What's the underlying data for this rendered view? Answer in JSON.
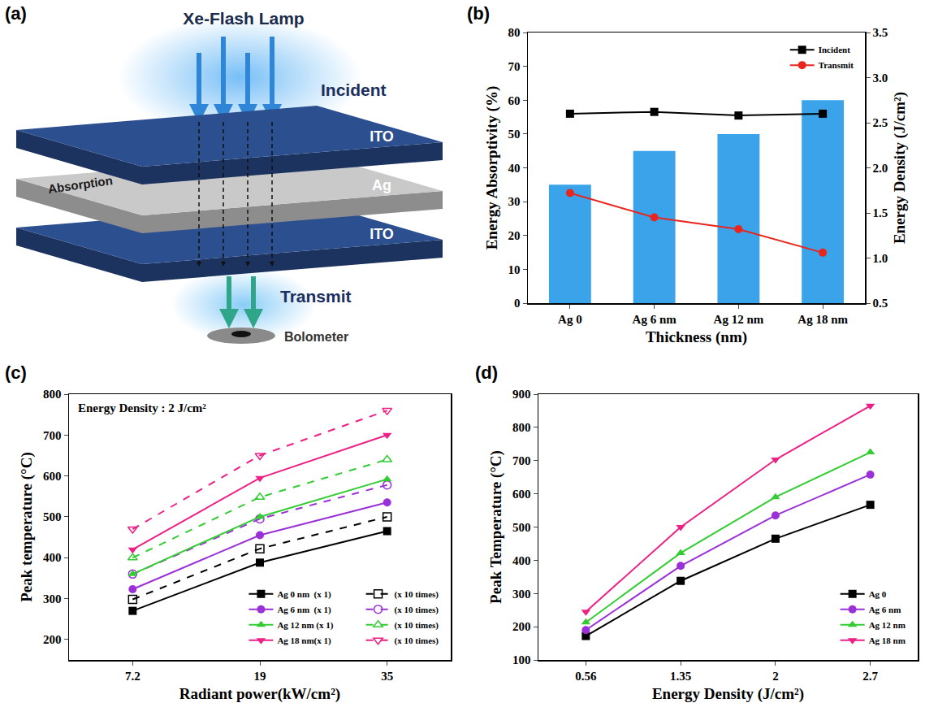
{
  "diagram": {
    "label": "(a)",
    "source": "Xe-Flash Lamp",
    "incident": "Incident",
    "layers": [
      "ITO",
      "Ag",
      "ITO"
    ],
    "absorption": "Absorption",
    "transmit": "Transmit",
    "detector": "Bolometer"
  },
  "chart_data": [
    {
      "label": "(b)",
      "type": "bar",
      "categories": [
        "Ag 0",
        "Ag 6 nm",
        "Ag 12 nm",
        "Ag 18 nm"
      ],
      "xlabel": "Thickness (nm)",
      "ylabel": "Energy Absorptivity (%)",
      "y2label": "Energy Density (J/cm²)",
      "ylim": [
        0,
        80
      ],
      "yticks": [
        0,
        10,
        20,
        30,
        40,
        50,
        60,
        70,
        80
      ],
      "y2lim": [
        0.5,
        3.5
      ],
      "y2ticks": [
        0.5,
        {
          "value": 1,
          "label": "1.0"
        },
        1.5,
        {
          "value": 2,
          "label": "2.0"
        },
        2.5,
        {
          "value": 3,
          "label": "3.0"
        },
        3.5
      ],
      "grid": false,
      "legend": "upper right",
      "series": [
        {
          "type": "bar",
          "color": "#3aa3ea",
          "values": [
            35,
            45,
            50,
            60
          ]
        },
        {
          "name": "Incident",
          "type": "line",
          "axis": "y2",
          "color": "#000000",
          "marker": "square",
          "line_style": "solid",
          "values": [
            2.6,
            2.62,
            2.58,
            2.6
          ]
        },
        {
          "name": "Transmit",
          "type": "line",
          "axis": "y2",
          "color": "#e8261e",
          "marker": "circle",
          "line_style": "solid",
          "values": [
            1.72,
            1.45,
            1.32,
            1.06
          ]
        }
      ]
    },
    {
      "label": "(c)",
      "type": "line",
      "annotation": "Energy Density : 2 J/cm²",
      "categories": [
        "7.2",
        "19",
        "35"
      ],
      "xlabel": "Radiant power(kW/cm²)",
      "ylabel": "Peak temperature (°C)",
      "ylim": [
        150,
        800
      ],
      "yticks": [
        200,
        300,
        400,
        500,
        600,
        700,
        800
      ],
      "grid": false,
      "legend": "lower right",
      "series": [
        {
          "name": "Ag 0 nm  (x 1)",
          "color": "#000000",
          "marker": "square",
          "line_style": "solid",
          "values": [
            270,
            388,
            465
          ]
        },
        {
          "name": "(x 10 times)",
          "color": "#000000",
          "marker": "square-open",
          "line_style": "dashed",
          "values": [
            298,
            422,
            500
          ]
        },
        {
          "name": "Ag 6 nm  (x 1)",
          "color": "#9b30d9",
          "marker": "circle",
          "line_style": "solid",
          "values": [
            323,
            455,
            535
          ]
        },
        {
          "name": "(x 10 times)",
          "color": "#9b30d9",
          "marker": "circle-open",
          "line_style": "dashed",
          "values": [
            360,
            495,
            578
          ]
        },
        {
          "name": "Ag 12 nm (x 1)",
          "color": "#33cc33",
          "marker": "triangle-up",
          "line_style": "solid",
          "values": [
            360,
            500,
            592
          ]
        },
        {
          "name": "(x 10 times)",
          "color": "#33cc33",
          "marker": "triangle-up-open",
          "line_style": "dashed",
          "values": [
            400,
            548,
            640
          ]
        },
        {
          "name": "Ag 18 nm(x 1)",
          "color": "#ee1f85",
          "marker": "triangle-down",
          "line_style": "solid",
          "values": [
            420,
            595,
            700
          ]
        },
        {
          "name": "(x 10 times)",
          "color": "#ee1f85",
          "marker": "triangle-down-open",
          "line_style": "dashed",
          "values": [
            470,
            650,
            760
          ]
        }
      ]
    },
    {
      "label": "(d)",
      "type": "line",
      "categories": [
        "0.56",
        "1.35",
        "2",
        "2.7"
      ],
      "xlabel": "Energy Density (J/cm²)",
      "ylabel": "Peak Temperature (°C)",
      "ylim": [
        100,
        900
      ],
      "yticks": [
        100,
        200,
        300,
        400,
        500,
        600,
        700,
        800,
        900
      ],
      "grid": false,
      "legend": "lower right",
      "series": [
        {
          "name": "Ag 0",
          "color": "#000000",
          "marker": "square",
          "line_style": "solid",
          "values": [
            172,
            338,
            465,
            567
          ]
        },
        {
          "name": "Ag 6 nm",
          "color": "#9b30d9",
          "marker": "circle",
          "line_style": "solid",
          "values": [
            190,
            383,
            535,
            658
          ]
        },
        {
          "name": "Ag 12 nm",
          "color": "#33cc33",
          "marker": "triangle-up",
          "line_style": "solid",
          "values": [
            213,
            422,
            590,
            725
          ]
        },
        {
          "name": "Ag 18 nm",
          "color": "#ee1f85",
          "marker": "triangle-down",
          "line_style": "solid",
          "values": [
            245,
            500,
            703,
            865
          ]
        }
      ]
    }
  ]
}
